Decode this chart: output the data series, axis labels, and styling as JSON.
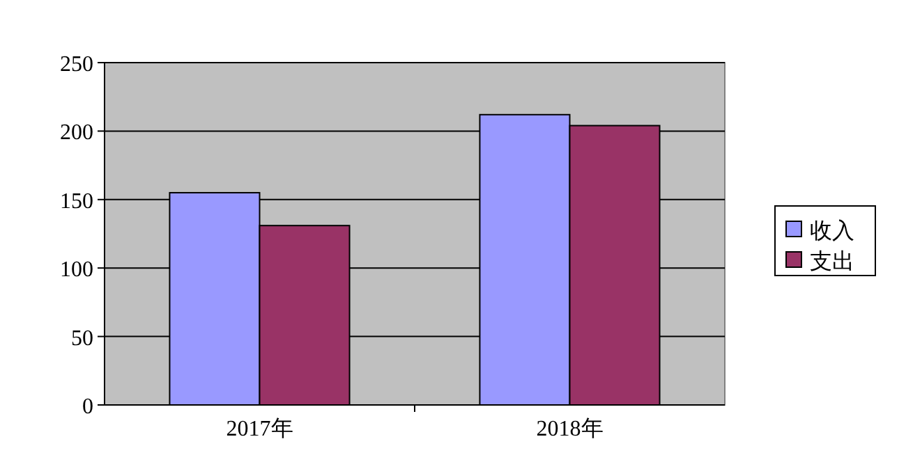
{
  "chart_data": {
    "type": "bar",
    "categories": [
      "2017年",
      "2018年"
    ],
    "series": [
      {
        "name": "收入",
        "color": "#9999ff",
        "values": [
          155,
          212
        ]
      },
      {
        "name": "支出",
        "color": "#993366",
        "values": [
          131,
          204
        ]
      }
    ],
    "ylim": [
      0,
      250
    ],
    "yticks": [
      0,
      50,
      100,
      150,
      200,
      250
    ],
    "grid": "y",
    "legend": "right"
  }
}
